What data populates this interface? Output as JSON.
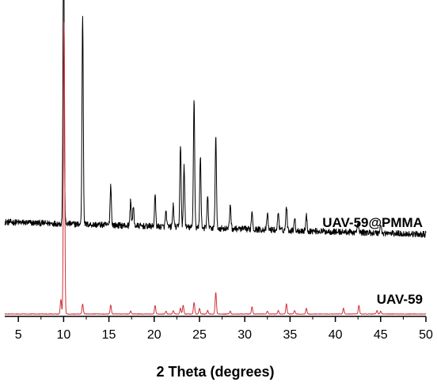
{
  "chart_data": {
    "type": "line",
    "title": "",
    "xlabel": "2 Theta (degrees)",
    "ylabel": "",
    "xlim": [
      3.5,
      50
    ],
    "xticks": [
      5,
      10,
      15,
      20,
      25,
      30,
      35,
      40,
      45,
      50
    ],
    "y_axis_shown": false,
    "grid": false,
    "series": [
      {
        "name": "UAV-59@PMMA",
        "color": "#000000",
        "baseline": 0.3,
        "noise": 0.01,
        "peaks": [
          {
            "x": 10.0,
            "h": 0.93
          },
          {
            "x": 12.1,
            "h": 0.68
          },
          {
            "x": 15.2,
            "h": 0.13
          },
          {
            "x": 17.4,
            "h": 0.08
          },
          {
            "x": 17.7,
            "h": 0.06
          },
          {
            "x": 20.1,
            "h": 0.1
          },
          {
            "x": 21.3,
            "h": 0.05
          },
          {
            "x": 22.1,
            "h": 0.07
          },
          {
            "x": 22.9,
            "h": 0.27
          },
          {
            "x": 23.3,
            "h": 0.2
          },
          {
            "x": 24.4,
            "h": 0.42
          },
          {
            "x": 25.1,
            "h": 0.23
          },
          {
            "x": 25.9,
            "h": 0.1
          },
          {
            "x": 26.8,
            "h": 0.3
          },
          {
            "x": 28.4,
            "h": 0.08
          },
          {
            "x": 30.8,
            "h": 0.06
          },
          {
            "x": 32.5,
            "h": 0.05
          },
          {
            "x": 33.7,
            "h": 0.06
          },
          {
            "x": 34.6,
            "h": 0.08
          },
          {
            "x": 35.5,
            "h": 0.04
          },
          {
            "x": 36.8,
            "h": 0.05
          },
          {
            "x": 42.5,
            "h": 0.03
          },
          {
            "x": 45.0,
            "h": 0.03
          }
        ]
      },
      {
        "name": "UAV-59",
        "color": "#d0313a",
        "baseline": 0.0,
        "noise": 0.001,
        "peaks": [
          {
            "x": 9.7,
            "h": 0.05
          },
          {
            "x": 10.05,
            "h": 1.0
          },
          {
            "x": 12.1,
            "h": 0.035
          },
          {
            "x": 15.2,
            "h": 0.03
          },
          {
            "x": 17.4,
            "h": 0.01
          },
          {
            "x": 20.1,
            "h": 0.03
          },
          {
            "x": 21.3,
            "h": 0.01
          },
          {
            "x": 22.1,
            "h": 0.012
          },
          {
            "x": 22.9,
            "h": 0.02
          },
          {
            "x": 23.2,
            "h": 0.03
          },
          {
            "x": 24.4,
            "h": 0.04
          },
          {
            "x": 25.0,
            "h": 0.02
          },
          {
            "x": 25.9,
            "h": 0.012
          },
          {
            "x": 26.8,
            "h": 0.075
          },
          {
            "x": 28.4,
            "h": 0.01
          },
          {
            "x": 30.8,
            "h": 0.025
          },
          {
            "x": 32.5,
            "h": 0.01
          },
          {
            "x": 33.7,
            "h": 0.012
          },
          {
            "x": 34.6,
            "h": 0.035
          },
          {
            "x": 35.5,
            "h": 0.012
          },
          {
            "x": 36.8,
            "h": 0.02
          },
          {
            "x": 40.9,
            "h": 0.02
          },
          {
            "x": 42.6,
            "h": 0.03
          },
          {
            "x": 44.6,
            "h": 0.012
          },
          {
            "x": 45.0,
            "h": 0.01
          }
        ]
      }
    ]
  }
}
